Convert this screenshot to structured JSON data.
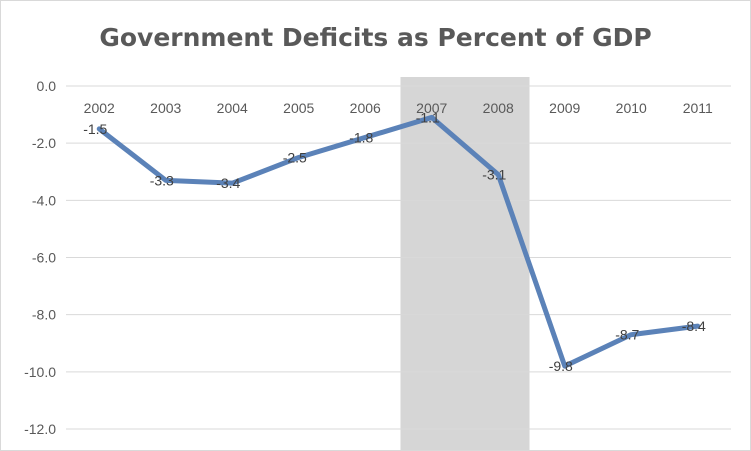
{
  "chart_data": {
    "type": "line",
    "title": "Government Deficits as Percent of GDP",
    "categories": [
      "2002",
      "2003",
      "2004",
      "2005",
      "2006",
      "2007",
      "2008",
      "2009",
      "2010",
      "2011"
    ],
    "series": [
      {
        "values": [
          -1.5,
          -3.3,
          -3.4,
          -2.5,
          -1.8,
          -1.1,
          -3.1,
          -9.8,
          -8.7,
          -8.4
        ]
      }
    ],
    "data_labels": [
      "-1.5",
      "-3.3",
      "-3.4",
      "-2.5",
      "-1.8",
      "-1.1",
      "-3.1",
      "-9.8",
      "-8.7",
      "-8.4"
    ],
    "y_tick_labels": [
      "0.0",
      "-2.0",
      "-4.0",
      "-6.0",
      "-8.0",
      "-10.0",
      "-12.0"
    ],
    "y_ticks": [
      0,
      -2,
      -4,
      -6,
      -8,
      -10,
      -12
    ],
    "ylim": [
      -12,
      0
    ],
    "xlabel": "",
    "ylabel": "",
    "grid": true,
    "legend": "none",
    "shaded_region": {
      "from": "2007",
      "to": "2008"
    },
    "colors": {
      "line": "#5b82b8",
      "grid": "#d9d9d9",
      "shade": "#d6d6d6"
    }
  }
}
